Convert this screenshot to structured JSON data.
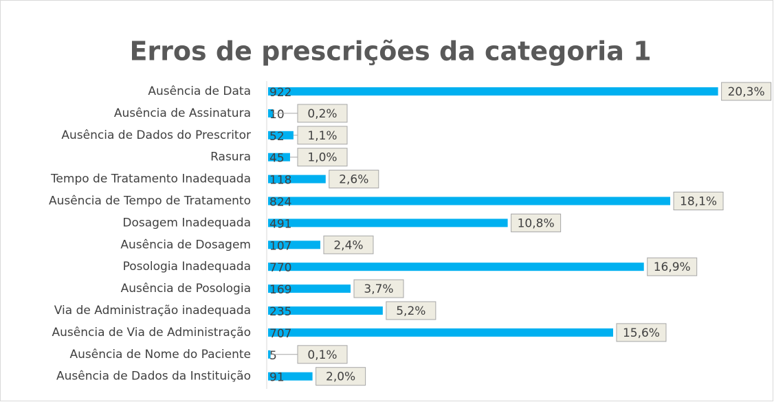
{
  "chart_data": {
    "type": "barh",
    "title": "Erros de prescrições da categoria 1",
    "categories": [
      "Ausência de Data",
      "Ausência de Assinatura",
      "Ausência de Dados do Prescritor",
      "Rasura",
      "Tempo de Tratamento Inadequada",
      "Ausência de Tempo de Tratamento",
      "Dosagem Inadequada",
      "Ausência de Dosagem",
      "Posologia Inadequada",
      "Ausência de Posologia",
      "Via de Administração inadequada",
      "Ausência de Via de Administração",
      "Ausência de Nome do Paciente",
      "Ausência de Dados da Instituição"
    ],
    "values": [
      922,
      10,
      52,
      45,
      118,
      824,
      491,
      107,
      770,
      169,
      235,
      707,
      5,
      91
    ],
    "percent_labels": [
      "20,3%",
      "0,2%",
      "1,1%",
      "1,0%",
      "2,6%",
      "18,1%",
      "10,8%",
      "2,4%",
      "16,9%",
      "3,7%",
      "5,2%",
      "15,6%",
      "0,1%",
      "2,0%"
    ],
    "color": "#00b0f0",
    "xlim": [
      0,
      1000
    ]
  }
}
